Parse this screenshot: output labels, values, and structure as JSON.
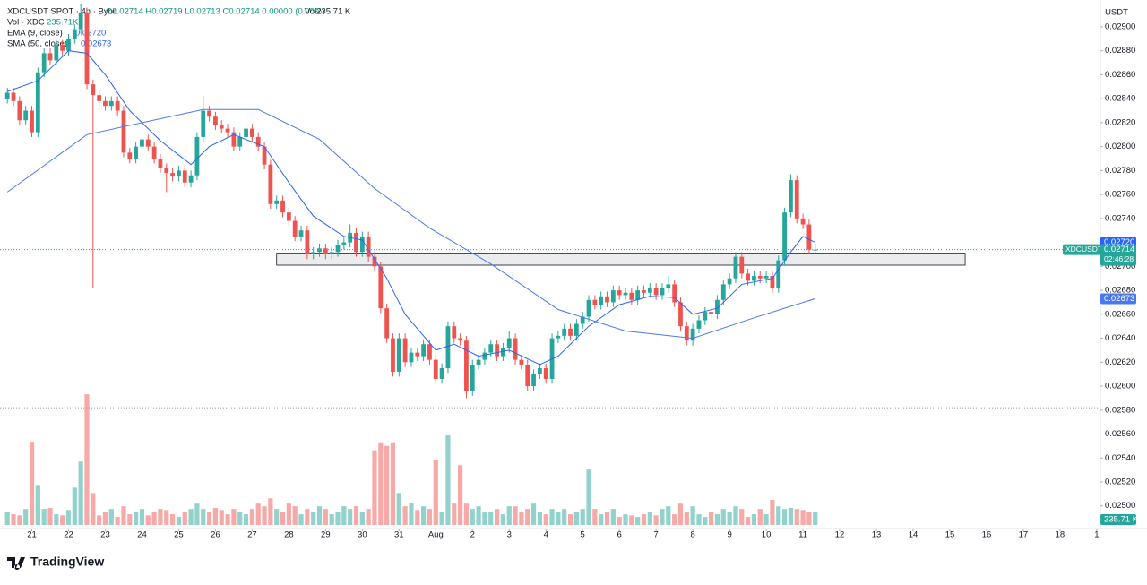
{
  "chart_data": {
    "type": "candlestick",
    "title": "XDCUSDT SPOT · 4h · Bybit",
    "ohlc_text": "O0.02714 H0.02719 L0.02713 C0.02714 0.00000 (0.00%)",
    "vol_text": "Vol235.71 K",
    "vol_legend": {
      "name": "Vol · XDC",
      "value": "235.71K"
    },
    "currency": "USDT",
    "brand": "TradingView",
    "up_color": "#26a69a",
    "down_color": "#ef5350",
    "xlim": [
      -1.2,
      178.6
    ],
    "ylim": [
      0.024811,
      0.029224
    ],
    "volume_ylim": [
      0,
      9845
    ],
    "grid": false,
    "xticks": [
      {
        "value": 4,
        "label": "21"
      },
      {
        "value": 10,
        "label": "22"
      },
      {
        "value": 16,
        "label": "23"
      },
      {
        "value": 22,
        "label": "24"
      },
      {
        "value": 28,
        "label": "25"
      },
      {
        "value": 34,
        "label": "26"
      },
      {
        "value": 40,
        "label": "27"
      },
      {
        "value": 46,
        "label": "28"
      },
      {
        "value": 52,
        "label": "29"
      },
      {
        "value": 58,
        "label": "30"
      },
      {
        "value": 64,
        "label": "31"
      },
      {
        "value": 70,
        "label": "Aug"
      },
      {
        "value": 76,
        "label": "2"
      },
      {
        "value": 82,
        "label": "3"
      },
      {
        "value": 88,
        "label": "4"
      },
      {
        "value": 94,
        "label": "5"
      },
      {
        "value": 100,
        "label": "6"
      },
      {
        "value": 106,
        "label": "7"
      },
      {
        "value": 112,
        "label": "8"
      },
      {
        "value": 118,
        "label": "9"
      },
      {
        "value": 124,
        "label": "10"
      },
      {
        "value": 130,
        "label": "11"
      },
      {
        "value": 136,
        "label": "12"
      },
      {
        "value": 142,
        "label": "13"
      },
      {
        "value": 148,
        "label": "14"
      },
      {
        "value": 154,
        "label": "15"
      },
      {
        "value": 160,
        "label": "16"
      },
      {
        "value": 166,
        "label": "17"
      },
      {
        "value": 172,
        "label": "18"
      },
      {
        "value": 178,
        "label": "1"
      }
    ],
    "yticks": [
      {
        "value": 0.029,
        "label": "0.02900"
      },
      {
        "value": 0.0288,
        "label": "0.02880"
      },
      {
        "value": 0.0286,
        "label": "0.02860"
      },
      {
        "value": 0.0284,
        "label": "0.02840"
      },
      {
        "value": 0.0282,
        "label": "0.02820"
      },
      {
        "value": 0.028,
        "label": "0.02800"
      },
      {
        "value": 0.0278,
        "label": "0.02780"
      },
      {
        "value": 0.0276,
        "label": "0.02760"
      },
      {
        "value": 0.0274,
        "label": "0.02740"
      },
      {
        "value": 0.0272,
        "label": "0.02720"
      },
      {
        "value": 0.027,
        "label": "0.02700"
      },
      {
        "value": 0.0268,
        "label": "0.02680"
      },
      {
        "value": 0.0266,
        "label": "0.02660"
      },
      {
        "value": 0.0264,
        "label": "0.02640"
      },
      {
        "value": 0.0262,
        "label": "0.02620"
      },
      {
        "value": 0.026,
        "label": "0.02600"
      },
      {
        "value": 0.0258,
        "label": "0.02580"
      },
      {
        "value": 0.0256,
        "label": "0.02560"
      },
      {
        "value": 0.0254,
        "label": "0.02540"
      },
      {
        "value": 0.0252,
        "label": "0.02520"
      },
      {
        "value": 0.025,
        "label": "0.02500"
      }
    ],
    "open": [
      0.0284,
      0.02845,
      0.02838,
      0.02822,
      0.0283,
      0.02812,
      0.02862,
      0.02878,
      0.02872,
      0.02885,
      0.0288,
      0.0289,
      0.02898,
      0.02912,
      0.02852,
      0.02843,
      0.02838,
      0.02834,
      0.02838,
      0.0283,
      0.02795,
      0.0279,
      0.028,
      0.02806,
      0.028,
      0.0279,
      0.02782,
      0.02778,
      0.02775,
      0.0278,
      0.0277,
      0.02776,
      0.02808,
      0.0283,
      0.02825,
      0.02818,
      0.02815,
      0.02812,
      0.028,
      0.02808,
      0.02815,
      0.02808,
      0.028,
      0.02785,
      0.02752,
      0.02755,
      0.02745,
      0.02738,
      0.02725,
      0.0273,
      0.0271,
      0.02712,
      0.02715,
      0.0271,
      0.02712,
      0.02718,
      0.0272,
      0.02728,
      0.02712,
      0.02725,
      0.02708,
      0.027,
      0.02665,
      0.0264,
      0.02612,
      0.0264,
      0.0262,
      0.02628,
      0.02625,
      0.02635,
      0.02622,
      0.02606,
      0.02615,
      0.0265,
      0.0264,
      0.02638,
      0.02596,
      0.02618,
      0.02622,
      0.02628,
      0.02635,
      0.02625,
      0.02632,
      0.0264,
      0.02622,
      0.02618,
      0.026,
      0.0261,
      0.02615,
      0.02606,
      0.0264,
      0.02642,
      0.02648,
      0.02642,
      0.02652,
      0.02658,
      0.02672,
      0.02668,
      0.02675,
      0.0267,
      0.0268,
      0.02676,
      0.02678,
      0.02672,
      0.0268,
      0.02678,
      0.02682,
      0.02676,
      0.02682,
      0.02685,
      0.0267,
      0.0265,
      0.02638,
      0.02648,
      0.02655,
      0.02662,
      0.0266,
      0.02672,
      0.02685,
      0.0269,
      0.02708,
      0.02694,
      0.02688,
      0.02692,
      0.0269,
      0.02692,
      0.02682,
      0.02705,
      0.02745,
      0.02772,
      0.0274,
      0.02735,
      0.02714
    ],
    "high": [
      0.02849,
      0.02849,
      0.02842,
      0.02834,
      0.02834,
      0.02866,
      0.02882,
      0.02882,
      0.02889,
      0.02889,
      0.02894,
      0.02902,
      0.02919,
      0.02916,
      0.02856,
      0.02847,
      0.02842,
      0.02842,
      0.02842,
      0.02834,
      0.02799,
      0.02804,
      0.0281,
      0.0281,
      0.02804,
      0.02794,
      0.02786,
      0.02782,
      0.02784,
      0.02784,
      0.0278,
      0.02812,
      0.02842,
      0.02834,
      0.02829,
      0.02822,
      0.02819,
      0.02816,
      0.02812,
      0.02819,
      0.02819,
      0.02812,
      0.02804,
      0.02789,
      0.02759,
      0.02759,
      0.02749,
      0.02742,
      0.02734,
      0.02734,
      0.02716,
      0.02719,
      0.02719,
      0.02716,
      0.02722,
      0.02724,
      0.02735,
      0.02732,
      0.02729,
      0.02729,
      0.02712,
      0.02704,
      0.02669,
      0.02644,
      0.02644,
      0.02644,
      0.02632,
      0.02632,
      0.02639,
      0.02639,
      0.02626,
      0.02619,
      0.02654,
      0.02654,
      0.02644,
      0.02642,
      0.02622,
      0.02626,
      0.02632,
      0.02639,
      0.02639,
      0.02636,
      0.02646,
      0.02644,
      0.02626,
      0.02622,
      0.02614,
      0.02619,
      0.02619,
      0.02644,
      0.02646,
      0.02652,
      0.02652,
      0.02656,
      0.02662,
      0.02676,
      0.02676,
      0.02679,
      0.02679,
      0.02684,
      0.02684,
      0.02682,
      0.02682,
      0.02684,
      0.02684,
      0.02686,
      0.02686,
      0.02686,
      0.02692,
      0.02689,
      0.02674,
      0.02654,
      0.02652,
      0.02659,
      0.02666,
      0.02666,
      0.02676,
      0.02689,
      0.02694,
      0.02712,
      0.02712,
      0.02698,
      0.02696,
      0.02696,
      0.02696,
      0.02696,
      0.02709,
      0.02749,
      0.02777,
      0.02776,
      0.02744,
      0.02739,
      0.02719
    ],
    "low": [
      0.02836,
      0.02834,
      0.02818,
      0.02818,
      0.02808,
      0.02808,
      0.02858,
      0.02868,
      0.02868,
      0.02876,
      0.02876,
      0.02886,
      0.02894,
      0.02848,
      0.02682,
      0.02834,
      0.0283,
      0.0283,
      0.02826,
      0.02791,
      0.02786,
      0.02786,
      0.02796,
      0.02796,
      0.02786,
      0.02778,
      0.02762,
      0.02771,
      0.02771,
      0.02766,
      0.02766,
      0.02772,
      0.02804,
      0.02821,
      0.02814,
      0.02811,
      0.02808,
      0.02796,
      0.02796,
      0.02804,
      0.02804,
      0.02796,
      0.02781,
      0.02748,
      0.02748,
      0.02741,
      0.02734,
      0.02721,
      0.02721,
      0.02706,
      0.02706,
      0.02708,
      0.02706,
      0.02706,
      0.02708,
      0.02714,
      0.02716,
      0.02708,
      0.02708,
      0.02704,
      0.02696,
      0.02661,
      0.02636,
      0.02608,
      0.02608,
      0.02616,
      0.02616,
      0.02621,
      0.02621,
      0.02618,
      0.02602,
      0.02602,
      0.02611,
      0.02636,
      0.02634,
      0.0259,
      0.02592,
      0.02614,
      0.02618,
      0.02624,
      0.02621,
      0.02621,
      0.02628,
      0.02618,
      0.02614,
      0.02596,
      0.02596,
      0.02606,
      0.02602,
      0.02602,
      0.02636,
      0.02638,
      0.02638,
      0.02638,
      0.02648,
      0.02654,
      0.02664,
      0.02664,
      0.02666,
      0.02666,
      0.02672,
      0.02672,
      0.02668,
      0.02668,
      0.02674,
      0.02674,
      0.02672,
      0.02672,
      0.02678,
      0.02666,
      0.02646,
      0.02634,
      0.02634,
      0.02644,
      0.02651,
      0.02656,
      0.02656,
      0.02668,
      0.02681,
      0.02686,
      0.0269,
      0.02684,
      0.02684,
      0.02686,
      0.02686,
      0.02678,
      0.02678,
      0.02701,
      0.02741,
      0.02736,
      0.02731,
      0.0271,
      0.02713
    ],
    "close": [
      0.02845,
      0.02838,
      0.02822,
      0.0283,
      0.02812,
      0.02862,
      0.02878,
      0.02872,
      0.02885,
      0.0288,
      0.0289,
      0.02898,
      0.02912,
      0.02852,
      0.02843,
      0.02838,
      0.02834,
      0.02838,
      0.0283,
      0.02795,
      0.0279,
      0.028,
      0.02806,
      0.028,
      0.0279,
      0.02782,
      0.02778,
      0.02775,
      0.0278,
      0.0277,
      0.02776,
      0.02808,
      0.0283,
      0.02825,
      0.02818,
      0.02815,
      0.02812,
      0.028,
      0.02808,
      0.02815,
      0.02808,
      0.028,
      0.02785,
      0.02752,
      0.02755,
      0.02745,
      0.02738,
      0.02725,
      0.0273,
      0.0271,
      0.02712,
      0.02715,
      0.0271,
      0.02712,
      0.02718,
      0.0272,
      0.02728,
      0.02712,
      0.02725,
      0.02708,
      0.027,
      0.02665,
      0.0264,
      0.02612,
      0.0264,
      0.0262,
      0.02628,
      0.02625,
      0.02635,
      0.02622,
      0.02606,
      0.02615,
      0.0265,
      0.0264,
      0.02638,
      0.02596,
      0.02618,
      0.02622,
      0.02628,
      0.02635,
      0.02625,
      0.02632,
      0.0264,
      0.02622,
      0.02618,
      0.026,
      0.0261,
      0.02615,
      0.02606,
      0.0264,
      0.02642,
      0.02648,
      0.02642,
      0.02652,
      0.02658,
      0.02672,
      0.02668,
      0.02675,
      0.0267,
      0.0268,
      0.02676,
      0.02678,
      0.02672,
      0.0268,
      0.02678,
      0.02682,
      0.02676,
      0.02682,
      0.02685,
      0.0267,
      0.0265,
      0.02638,
      0.02648,
      0.02655,
      0.02662,
      0.0266,
      0.02672,
      0.02685,
      0.0269,
      0.02708,
      0.02694,
      0.02688,
      0.02692,
      0.0269,
      0.02692,
      0.02682,
      0.02705,
      0.02745,
      0.02772,
      0.0274,
      0.02735,
      0.02714,
      0.02714
    ],
    "volume": [
      250,
      200,
      180,
      300,
      1560,
      750,
      300,
      320,
      200,
      180,
      280,
      700,
      1190,
      2450,
      600,
      180,
      250,
      300,
      150,
      350,
      200,
      250,
      300,
      180,
      250,
      300,
      280,
      200,
      150,
      250,
      300,
      400,
      300,
      250,
      320,
      280,
      200,
      300,
      250,
      200,
      300,
      400,
      350,
      500,
      300,
      250,
      400,
      350,
      200,
      300,
      250,
      350,
      300,
      200,
      250,
      350,
      300,
      350,
      250,
      300,
      1400,
      1550,
      1480,
      1550,
      600,
      350,
      420,
      280,
      350,
      300,
      1210,
      250,
      1680,
      400,
      1120,
      400,
      300,
      350,
      250,
      250,
      300,
      200,
      350,
      350,
      250,
      300,
      400,
      250,
      200,
      300,
      250,
      300,
      200,
      250,
      300,
      1040,
      300,
      200,
      250,
      300,
      150,
      200,
      180,
      150,
      200,
      250,
      180,
      300,
      350,
      200,
      400,
      250,
      350,
      200,
      150,
      250,
      200,
      300,
      250,
      350,
      300,
      150,
      200,
      300,
      200,
      470,
      350,
      300,
      320,
      300,
      280,
      250,
      235.71
    ],
    "volume_label": "235.71 K",
    "lines": [
      {
        "name": "EMA (9, close)",
        "label": "0.02720",
        "color": "#2962ff",
        "x": [
          0,
          5,
          10,
          13,
          16,
          20,
          25,
          30,
          33,
          37,
          42,
          46,
          50,
          55,
          58,
          62,
          65,
          70,
          73,
          77,
          82,
          87,
          90,
          95,
          100,
          105,
          109,
          112,
          116,
          120,
          125,
          128,
          130,
          132
        ],
        "values": [
          0.02846,
          0.02855,
          0.0288,
          0.02878,
          0.0286,
          0.0283,
          0.02805,
          0.02785,
          0.028,
          0.0281,
          0.028,
          0.0277,
          0.02742,
          0.02725,
          0.02722,
          0.0269,
          0.0266,
          0.0263,
          0.02635,
          0.02625,
          0.0263,
          0.02618,
          0.02625,
          0.0265,
          0.02668,
          0.02675,
          0.02674,
          0.0266,
          0.02665,
          0.02685,
          0.0269,
          0.02712,
          0.02725,
          0.0272
        ]
      },
      {
        "name": "SMA (50, close)",
        "label": "0.02673",
        "color": "#4a78f0",
        "x": [
          0,
          13,
          32,
          41,
          51,
          60,
          69,
          79,
          90,
          101,
          112,
          122,
          132
        ],
        "values": [
          0.02762,
          0.0281,
          0.02831,
          0.02831,
          0.02806,
          0.02765,
          0.02732,
          0.02702,
          0.02664,
          0.02646,
          0.0264,
          0.02657,
          0.02673
        ]
      }
    ],
    "price_tag": {
      "symbol": "XDCUSDT",
      "price": "0.02714",
      "countdown": "02:46:28"
    },
    "zone": {
      "x": [
        44,
        156.5
      ],
      "y": [
        0.02701,
        0.02711
      ]
    },
    "hline": 0.02582
  }
}
